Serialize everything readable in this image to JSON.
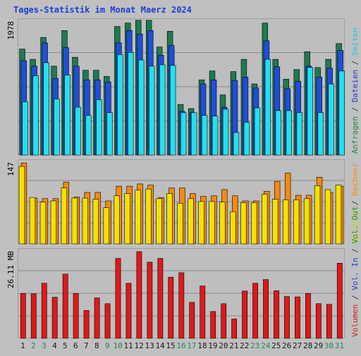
{
  "title": "Tages-Statistik im Monat Maerz 2024",
  "colors": {
    "background": "#c0c0c0",
    "frame": "#ffffff",
    "panel": "#bebebe",
    "grid": "#8a8a8a",
    "title": "#1a3fd6",
    "weekday_label": "#1a1a1a",
    "weekend_label": "#1e8a4e",
    "anfragen": "#1f7a4f",
    "dateien": "#1e4fd8",
    "seiten": "#22e0f0",
    "besuche": "#f5e000",
    "rechner": "#f58a10",
    "volumen": "#e01818",
    "legend_anfragen": "#1e8a4e",
    "legend_dateien": "#1a3fd6",
    "legend_seiten": "#19c8e6",
    "legend_besuche": "#d8d800",
    "legend_rechner": "#ff8c00",
    "legend_vol_in": "#1a3fd6",
    "legend_vol_out": "#1e8a4e",
    "legend_volumen": "#e01818",
    "legend_sep": "#404040"
  },
  "chart_data": [
    {
      "type": "bar",
      "ylabel": "1978",
      "ymax": 1978,
      "categories": [
        "1",
        "2",
        "3",
        "4",
        "5",
        "6",
        "7",
        "8",
        "9",
        "10",
        "11",
        "12",
        "13",
        "14",
        "15",
        "16",
        "17",
        "18",
        "19",
        "20",
        "21",
        "22",
        "23",
        "24",
        "25",
        "26",
        "27",
        "28",
        "29",
        "30",
        "31"
      ],
      "weekend_days": [
        "2",
        "3",
        "9",
        "10",
        "16",
        "17",
        "23",
        "24",
        "30",
        "31"
      ],
      "legend": [
        {
          "text": "Anfragen",
          "color_key": "legend_anfragen"
        },
        {
          "text": " / ",
          "color_key": "legend_sep"
        },
        {
          "text": "Dateien",
          "color_key": "legend_dateien"
        },
        {
          "text": " / ",
          "color_key": "legend_sep"
        },
        {
          "text": "Seiten",
          "color_key": "legend_seiten"
        }
      ],
      "series": [
        {
          "name": "Anfragen",
          "values": [
            1550,
            1400,
            1720,
            1300,
            1820,
            1430,
            1240,
            1240,
            1150,
            1880,
            1930,
            1970,
            1970,
            1580,
            1810,
            740,
            680,
            1100,
            1230,
            880,
            1220,
            1400,
            1040,
            1930,
            1400,
            1110,
            1250,
            1510,
            1280,
            1400,
            1630
          ]
        },
        {
          "name": "Dateien",
          "values": [
            1380,
            1300,
            1640,
            1120,
            1570,
            1300,
            1100,
            1100,
            1070,
            1640,
            1820,
            1770,
            1820,
            1460,
            1600,
            640,
            620,
            1040,
            1100,
            700,
            1090,
            1140,
            980,
            1670,
            1290,
            970,
            1080,
            1300,
            1140,
            1270,
            1530
          ]
        },
        {
          "name": "Seiten",
          "values": [
            780,
            1160,
            1350,
            820,
            1170,
            700,
            580,
            810,
            620,
            1470,
            1500,
            1390,
            1300,
            1320,
            1310,
            620,
            620,
            580,
            570,
            670,
            330,
            480,
            690,
            1400,
            650,
            650,
            620,
            1280,
            620,
            1040,
            1230
          ]
        }
      ]
    },
    {
      "type": "bar",
      "ylabel": "147",
      "ymax": 147,
      "legend": [
        {
          "text": "Besuche",
          "color_key": "legend_besuche"
        },
        {
          "text": " / ",
          "color_key": "legend_sep"
        },
        {
          "text": "Rechner",
          "color_key": "legend_rechner"
        }
      ],
      "series": [
        {
          "name": "Besuche",
          "values": [
            137,
            82,
            74,
            76,
            99,
            81,
            81,
            79,
            64,
            85,
            89,
            95,
            97,
            80,
            89,
            72,
            80,
            75,
            75,
            74,
            57,
            73,
            73,
            88,
            79,
            78,
            78,
            80,
            103,
            96,
            104
          ]
        },
        {
          "name": "Rechner",
          "values": [
            143,
            81,
            80,
            80,
            109,
            83,
            91,
            91,
            76,
            102,
            102,
            106,
            104,
            82,
            99,
            99,
            89,
            84,
            85,
            96,
            85,
            76,
            76,
            93,
            110,
            125,
            86,
            86,
            118,
            91,
            102
          ]
        }
      ]
    },
    {
      "type": "bar",
      "ylabel": "26.11 MB",
      "ymax": 26.11,
      "legend": [
        {
          "text": "Volumen",
          "color_key": "legend_volumen"
        },
        {
          "text": " / ",
          "color_key": "legend_sep"
        },
        {
          "text": "Vol. In",
          "color_key": "legend_vol_in"
        },
        {
          "text": " / ",
          "color_key": "legend_sep"
        },
        {
          "text": "Vol. Out",
          "color_key": "legend_vol_out"
        }
      ],
      "series": [
        {
          "name": "Volumen",
          "values": [
            13.2,
            13.1,
            16.2,
            12.1,
            18.9,
            13.2,
            8.2,
            11.9,
            10.2,
            23.5,
            16.2,
            25.5,
            22.4,
            23.5,
            18.0,
            19.3,
            10.6,
            15.4,
            7.9,
            10.2,
            5.7,
            13.9,
            16.2,
            17.3,
            14.0,
            12.3,
            12.2,
            13.2,
            10.2,
            10.0,
            22.1
          ]
        }
      ]
    }
  ]
}
